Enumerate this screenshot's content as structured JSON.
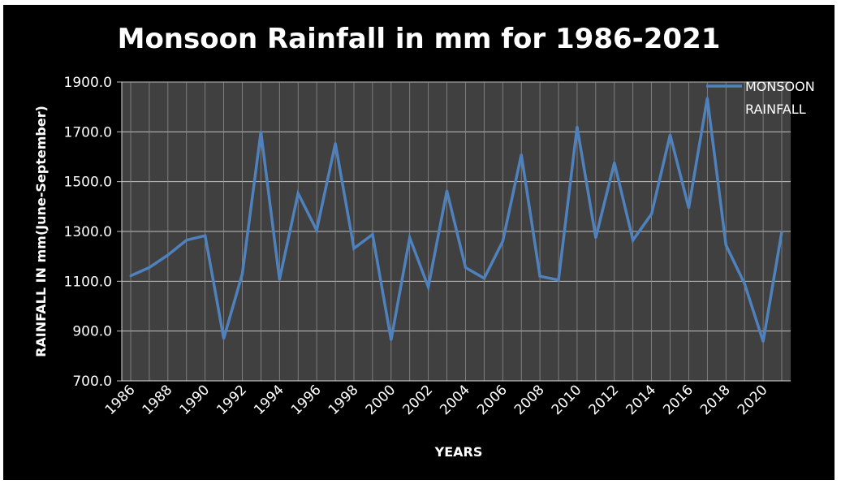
{
  "chart_data": {
    "type": "line",
    "title": "Monsoon Rainfall in mm for 1986-2021",
    "xlabel": "YEARS",
    "ylabel": "RAINFALL IN mm(June-September)",
    "ylim": [
      700,
      1900
    ],
    "yticks": [
      "700.0",
      "900.0",
      "1100.0",
      "1300.0",
      "1500.0",
      "1700.0",
      "1900.0"
    ],
    "xtick_labels": [
      "1986",
      "1988",
      "1990",
      "1992",
      "1994",
      "1996",
      "1998",
      "2000",
      "2002",
      "2004",
      "2006",
      "2008",
      "2010",
      "2012",
      "2014",
      "2016",
      "2018",
      "2020"
    ],
    "grid": true,
    "legend": {
      "position": "top-right",
      "lines": [
        "MONSOON",
        "RAINFALL"
      ]
    },
    "series": [
      {
        "name": "MONSOON RAINFALL",
        "color": "#4f81bd",
        "x": [
          1986,
          1987,
          1988,
          1989,
          1990,
          1991,
          1992,
          1993,
          1994,
          1995,
          1996,
          1997,
          1998,
          1999,
          2000,
          2001,
          2002,
          2003,
          2004,
          2005,
          2006,
          2007,
          2008,
          2009,
          2010,
          2011,
          2012,
          2013,
          2014,
          2015,
          2016,
          2017,
          2018,
          2019,
          2020,
          2021
        ],
        "values": [
          1122,
          1155,
          1205,
          1265,
          1283,
          870,
          1130,
          1700,
          1107,
          1453,
          1305,
          1653,
          1232,
          1288,
          865,
          1275,
          1077,
          1463,
          1155,
          1112,
          1260,
          1608,
          1120,
          1105,
          1720,
          1275,
          1576,
          1265,
          1370,
          1688,
          1395,
          1835,
          1245,
          1090,
          858,
          1298
        ]
      }
    ]
  }
}
